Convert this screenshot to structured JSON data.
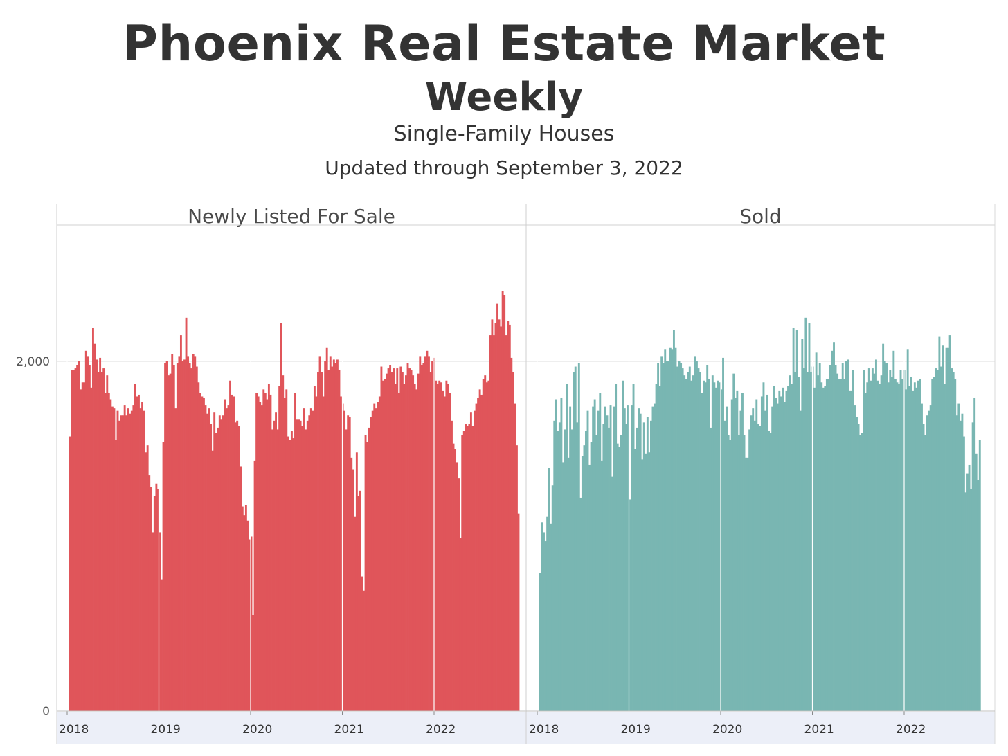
{
  "header": {
    "title": "Phoenix Real Estate Market",
    "subtitle": "Weekly",
    "property_type": "Single-Family Houses",
    "updated": "Updated through September 3, 2022"
  },
  "chart_data": [
    {
      "type": "bar",
      "title": "Newly Listed For Sale",
      "color": "#e0555a",
      "x_start_date": "2018-01-06",
      "x_interval": "weekly",
      "x_ticks": [
        "2018",
        "2019",
        "2020",
        "2021",
        "2022"
      ],
      "y_ticks": [
        0,
        2000
      ],
      "y_tick_labels": [
        "0",
        "2,000"
      ],
      "ylim": [
        0,
        2780
      ],
      "grid": true,
      "values": [
        1570,
        1950,
        1950,
        1960,
        1980,
        2000,
        1840,
        1880,
        1880,
        2060,
        2030,
        1980,
        1850,
        2190,
        2100,
        2010,
        1940,
        2020,
        1940,
        1960,
        1820,
        1920,
        1820,
        1780,
        1740,
        1730,
        1550,
        1720,
        1660,
        1690,
        1690,
        1750,
        1690,
        1730,
        1700,
        1720,
        1750,
        1870,
        1800,
        1810,
        1730,
        1770,
        1720,
        1480,
        1520,
        1350,
        1280,
        1020,
        1230,
        1300,
        1270,
        1020,
        750,
        1540,
        1990,
        2000,
        1920,
        1930,
        2040,
        1980,
        1730,
        1990,
        2030,
        2150,
        2000,
        2010,
        2250,
        2030,
        1990,
        1960,
        2040,
        2030,
        1970,
        1880,
        1820,
        1800,
        1790,
        1750,
        1700,
        1730,
        1640,
        1490,
        1710,
        1590,
        1620,
        1690,
        1670,
        1690,
        1780,
        1730,
        1750,
        1890,
        1810,
        1800,
        1650,
        1660,
        1630,
        1400,
        1170,
        1120,
        1180,
        1090,
        980,
        1000,
        550,
        1430,
        1820,
        1800,
        1770,
        1750,
        1840,
        1820,
        1780,
        1870,
        1810,
        1610,
        1660,
        1710,
        1610,
        1860,
        2220,
        1920,
        1790,
        1840,
        1570,
        1550,
        1600,
        1560,
        1820,
        1670,
        1670,
        1660,
        1630,
        1730,
        1610,
        1660,
        1690,
        1730,
        1720,
        1860,
        1800,
        1940,
        2030,
        1940,
        1800,
        2000,
        2080,
        1950,
        2030,
        1970,
        2010,
        1990,
        2010,
        1950,
        1800,
        1760,
        1720,
        1610,
        1690,
        1680,
        1450,
        1380,
        1110,
        1480,
        1230,
        1260,
        770,
        690,
        1580,
        1540,
        1620,
        1680,
        1720,
        1760,
        1730,
        1770,
        1800,
        1970,
        1890,
        1900,
        1930,
        1960,
        1980,
        1940,
        1960,
        1870,
        1960,
        1820,
        1970,
        1940,
        1870,
        1920,
        1990,
        1960,
        1950,
        1920,
        1870,
        1840,
        1930,
        2030,
        1980,
        1990,
        2030,
        2060,
        2030,
        1940,
        2000,
        2020,
        1890,
        1870,
        1890,
        1880,
        1830,
        1800,
        1890,
        1870,
        1820,
        1660,
        1530,
        1500,
        1420,
        1330,
        990,
        1580,
        1600,
        1640,
        1630,
        1640,
        1710,
        1630,
        1720,
        1760,
        1790,
        1840,
        1810,
        1900,
        1920,
        1880,
        1890,
        2150,
        2240,
        2150,
        2220,
        2330,
        2240,
        2200,
        2400,
        2380,
        2150,
        2230,
        2210,
        2020,
        1940,
        1760,
        1520,
        1130
      ]
    },
    {
      "type": "bar",
      "title": "Sold",
      "color": "#79b6b2",
      "x_start_date": "2018-01-06",
      "x_interval": "weekly",
      "x_ticks": [
        "2018",
        "2019",
        "2020",
        "2021",
        "2022"
      ],
      "y_ticks": [
        0,
        2000
      ],
      "y_tick_labels": [
        "0",
        "2,000"
      ],
      "ylim": [
        0,
        2780
      ],
      "grid": true,
      "values": [
        790,
        1080,
        1020,
        970,
        1110,
        1390,
        1070,
        1290,
        1660,
        1780,
        1600,
        1650,
        1790,
        1420,
        1610,
        1870,
        1450,
        1740,
        1610,
        1940,
        1970,
        1650,
        1990,
        1220,
        1460,
        1520,
        1600,
        1720,
        1410,
        1540,
        1740,
        1780,
        1580,
        1720,
        1820,
        1430,
        1640,
        1740,
        1690,
        1620,
        1750,
        1340,
        1740,
        1870,
        1530,
        1510,
        1580,
        1890,
        1730,
        1640,
        1750,
        1210,
        1750,
        1870,
        1500,
        1620,
        1730,
        1700,
        1440,
        1650,
        1470,
        1680,
        1480,
        1660,
        1740,
        1760,
        1870,
        1990,
        1860,
        2030,
        1990,
        2070,
        2000,
        2000,
        2080,
        2070,
        2180,
        2080,
        1970,
        2000,
        1990,
        1960,
        1920,
        1900,
        1940,
        1970,
        1890,
        1920,
        2030,
        2000,
        1960,
        1940,
        1820,
        1890,
        1880,
        1980,
        1900,
        1620,
        1920,
        1880,
        1850,
        1890,
        1880,
        1840,
        2020,
        1660,
        1740,
        1580,
        1550,
        1780,
        1930,
        1790,
        1830,
        1580,
        1720,
        1820,
        1580,
        1450,
        1450,
        1610,
        1690,
        1730,
        1660,
        1780,
        1640,
        1630,
        1800,
        1880,
        1720,
        1810,
        1600,
        1590,
        1740,
        1860,
        1790,
        1760,
        1830,
        1800,
        1850,
        1770,
        1830,
        1860,
        1920,
        1870,
        2190,
        1940,
        2180,
        1910,
        1720,
        2130,
        1960,
        2250,
        1940,
        2220,
        1940,
        1970,
        1850,
        2050,
        1920,
        1990,
        1880,
        1850,
        1860,
        1900,
        1900,
        1980,
        2060,
        2110,
        1980,
        1930,
        1900,
        1900,
        1990,
        1900,
        2000,
        2010,
        1830,
        1830,
        1950,
        1750,
        1680,
        1640,
        1580,
        1590,
        1950,
        1820,
        1880,
        1960,
        1890,
        1960,
        1930,
        2010,
        1890,
        1870,
        1920,
        2100,
        2000,
        1990,
        1880,
        1950,
        1910,
        2060,
        1900,
        1880,
        1870,
        1950,
        1900,
        1950,
        1840,
        2070,
        1860,
        1910,
        1830,
        1880,
        1850,
        1890,
        1900,
        1760,
        1640,
        1580,
        1690,
        1720,
        1750,
        1900,
        1910,
        1960,
        1950,
        2140,
        1970,
        2090,
        1870,
        2080,
        2080,
        2150,
        1960,
        1940,
        1900,
        1690,
        1760,
        1660,
        1700,
        1570,
        1250,
        1360,
        1410,
        1270,
        1650,
        1790,
        1470,
        1320,
        1550
      ]
    }
  ]
}
